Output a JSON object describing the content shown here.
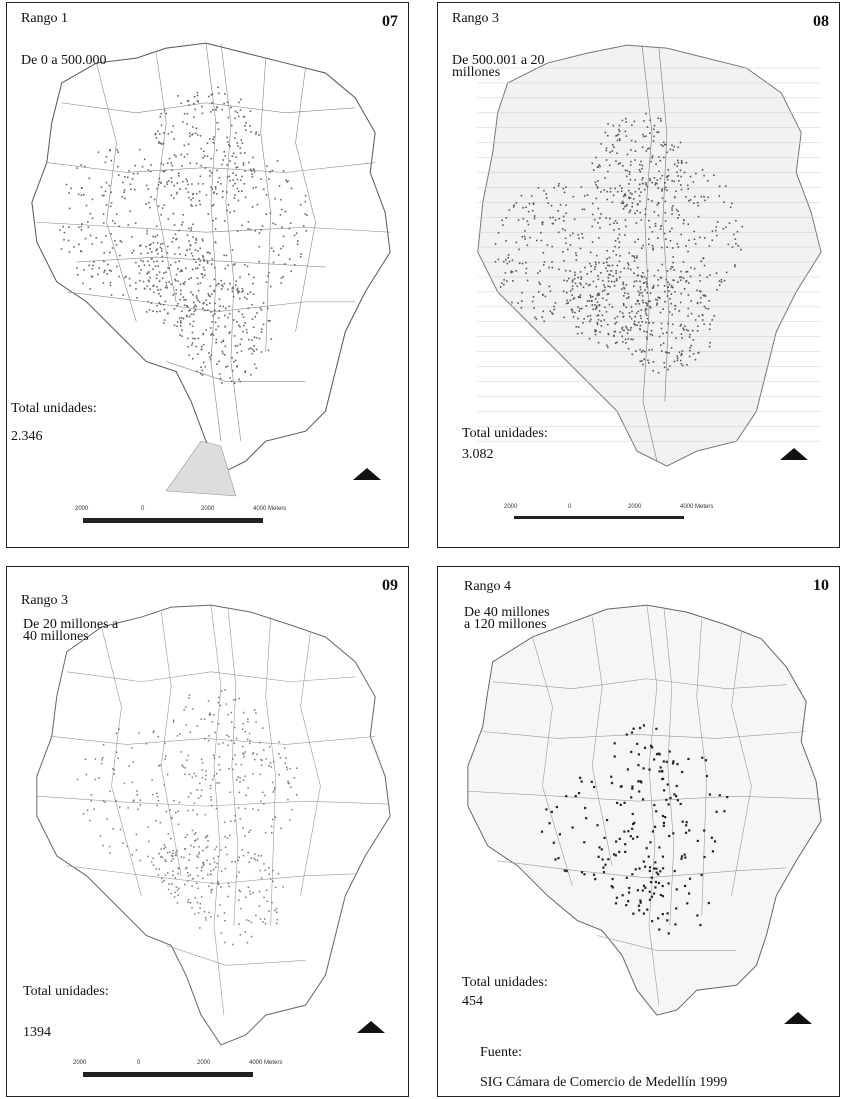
{
  "panels": [
    {
      "range_label": "Rango 1",
      "number": "07",
      "value_range": [
        "De 0 a 500.000"
      ],
      "total_label": "Total unidades:",
      "total_value": "2.346",
      "scale_labels": [
        "2000",
        "0",
        "2000",
        "4000 Meters"
      ]
    },
    {
      "range_label": "Rango 3",
      "number": "08",
      "value_range": [
        "De 500.001 a 20",
        "millones"
      ],
      "total_label": "Total unidades:",
      "total_value": "3.082",
      "scale_labels": [
        "2000",
        "0",
        "2000",
        "4000 Meters"
      ]
    },
    {
      "range_label": "Rango 3",
      "number": "09",
      "value_range": [
        "De 20 millones a",
        "40 millones"
      ],
      "total_label": "Total unidades:",
      "total_value": "1394",
      "scale_labels": [
        "2000",
        "0",
        "2000",
        "4000 Meters"
      ]
    },
    {
      "range_label": "Rango 4",
      "number": "10",
      "value_range": [
        "De 40 millones",
        "a 120 millones"
      ],
      "total_label": "Total unidades:",
      "total_value": "454",
      "scale_labels": []
    }
  ],
  "source": {
    "label": "Fuente:",
    "text": "SIG Cámara de Comercio de Medellín 1999"
  },
  "icons": {
    "north": "north-arrow-icon"
  }
}
